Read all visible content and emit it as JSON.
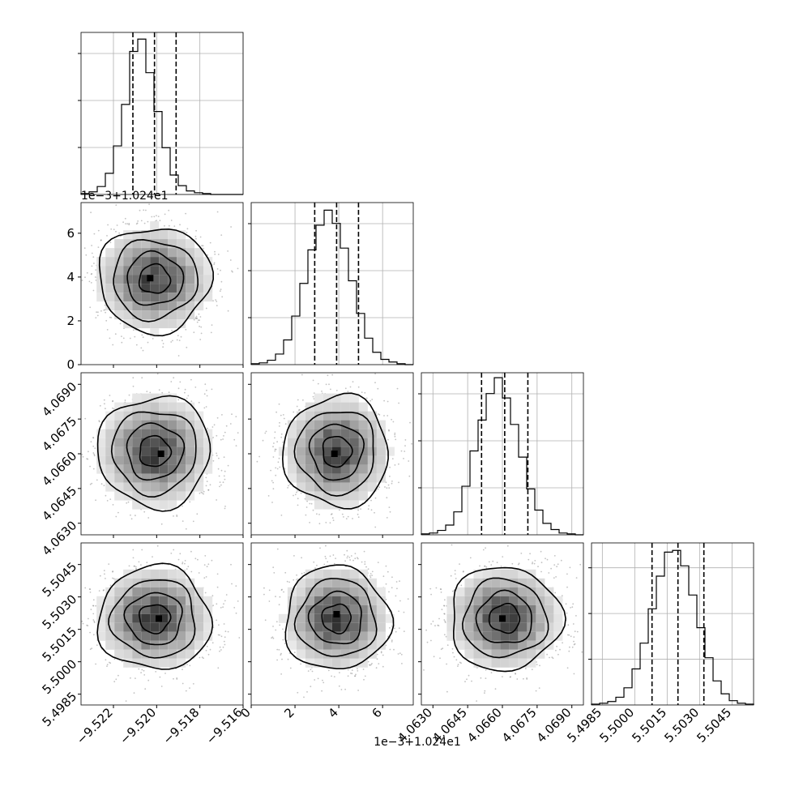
{
  "chart_data": {
    "type": "corner",
    "grid": true,
    "parameters": [
      {
        "range": [
          -9.5235,
          -9.516
        ],
        "ticks": [
          {
            "value": -9.522,
            "label": "−9.522"
          },
          {
            "value": -9.52,
            "label": "−9.520"
          },
          {
            "value": -9.518,
            "label": "−9.518"
          },
          {
            "value": -9.516,
            "label": "−9.516"
          }
        ],
        "offset_label": "",
        "quantiles": [
          -9.5211,
          -9.5201,
          -9.5191
        ],
        "hist": {
          "edges_from": -9.5235,
          "edges_to": -9.516,
          "counts": [
            1,
            3,
            9,
            24,
            55,
            102,
            162,
            176,
            138,
            94,
            53,
            22,
            10,
            4,
            2,
            1,
            0,
            0,
            0,
            0
          ]
        },
        "hist_max": 180
      },
      {
        "range": [
          0.0,
          7.4
        ],
        "ticks": [
          {
            "value": 0,
            "label": "0"
          },
          {
            "value": 2,
            "label": "2"
          },
          {
            "value": 4,
            "label": "4"
          },
          {
            "value": 6,
            "label": "6"
          }
        ],
        "offset_label": "1e−3+1.024e1",
        "quantiles": [
          2.9,
          3.9,
          4.9
        ],
        "hist": {
          "edges_from": 0.0,
          "edges_to": 7.4,
          "counts": [
            1,
            2,
            5,
            12,
            28,
            55,
            92,
            130,
            158,
            175,
            160,
            132,
            95,
            58,
            30,
            14,
            6,
            3,
            1,
            0
          ]
        },
        "hist_max": 180
      },
      {
        "range": [
          4.0625,
          4.0695
        ],
        "ticks": [
          {
            "value": 4.063,
            "label": "4.0630"
          },
          {
            "value": 4.0645,
            "label": "4.0645"
          },
          {
            "value": 4.066,
            "label": "4.0660"
          },
          {
            "value": 4.0675,
            "label": "4.0675"
          },
          {
            "value": 4.069,
            "label": "4.0690"
          }
        ],
        "offset_label": "",
        "quantiles": [
          4.0651,
          4.0661,
          4.0671
        ],
        "hist": {
          "edges_from": 4.0625,
          "edges_to": 4.0695,
          "counts": [
            1,
            2,
            5,
            11,
            26,
            55,
            95,
            130,
            160,
            178,
            155,
            125,
            88,
            52,
            28,
            13,
            6,
            2,
            1,
            0
          ]
        },
        "hist_max": 180
      },
      {
        "range": [
          5.498,
          5.5055
        ],
        "ticks": [
          {
            "value": 5.4985,
            "label": "5.4985"
          },
          {
            "value": 5.5,
            "label": "5.5000"
          },
          {
            "value": 5.5015,
            "label": "5.5015"
          },
          {
            "value": 5.503,
            "label": "5.5030"
          },
          {
            "value": 5.5045,
            "label": "5.5045"
          }
        ],
        "offset_label": "",
        "quantiles": [
          5.5008,
          5.502,
          5.5032
        ],
        "hist": {
          "edges_from": 5.498,
          "edges_to": 5.5055,
          "counts": [
            1,
            2,
            4,
            9,
            20,
            42,
            72,
            112,
            150,
            178,
            180,
            162,
            128,
            90,
            55,
            28,
            13,
            5,
            2,
            1
          ]
        },
        "hist_max": 185
      }
    ],
    "pairs": [
      {
        "row": 1,
        "col": 0,
        "center": [
          -9.5201,
          3.9
        ],
        "spread": [
          0.0013,
          1.2
        ],
        "peak": [
          -9.5203,
          3.95
        ]
      },
      {
        "row": 2,
        "col": 0,
        "center": [
          -9.5201,
          4.0661
        ],
        "spread": [
          0.0013,
          0.0012
        ],
        "peak": [
          -9.5198,
          4.066
        ]
      },
      {
        "row": 2,
        "col": 1,
        "center": [
          3.9,
          4.0661
        ],
        "spread": [
          1.2,
          0.0012
        ],
        "peak": [
          3.8,
          4.066
        ]
      },
      {
        "row": 3,
        "col": 0,
        "center": [
          -9.5201,
          5.502
        ],
        "spread": [
          0.0013,
          0.0012
        ],
        "peak": [
          -9.5199,
          5.502
        ]
      },
      {
        "row": 3,
        "col": 1,
        "center": [
          3.9,
          5.502
        ],
        "spread": [
          1.2,
          0.0012
        ],
        "peak": [
          3.9,
          5.5022
        ]
      },
      {
        "row": 3,
        "col": 2,
        "center": [
          4.0661,
          5.502
        ],
        "spread": [
          0.0012,
          0.0012
        ],
        "peak": [
          4.066,
          5.502
        ]
      }
    ]
  }
}
